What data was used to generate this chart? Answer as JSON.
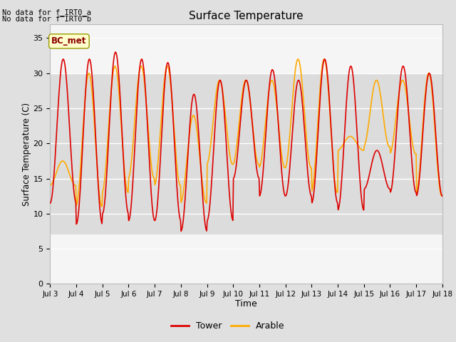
{
  "title": "Surface Temperature",
  "xlabel": "Time",
  "ylabel": "Surface Temperature (C)",
  "ylim": [
    0,
    37
  ],
  "yticks": [
    0,
    5,
    10,
    15,
    20,
    25,
    30,
    35
  ],
  "bg_color": "#e0e0e0",
  "plot_bg_color": "#f5f5f5",
  "grid_color": "#ffffff",
  "annotation_text": "No data for f_IRT0_a\nNo data for f̅IRT0̅b",
  "bc_met_label": "BC_met",
  "bc_met_bg": "#ffffcc",
  "bc_met_border": "#999900",
  "bc_met_text_color": "#8b0000",
  "legend_tower_color": "#dd0000",
  "legend_arable_color": "#ffaa00",
  "tower_color": "#dd0000",
  "arable_color": "#ffaa00",
  "tower_lw": 1.2,
  "arable_lw": 1.2,
  "x_start": 3,
  "x_end": 18,
  "xtick_positions": [
    3,
    4,
    5,
    6,
    7,
    8,
    9,
    10,
    11,
    12,
    13,
    14,
    15,
    16,
    17,
    18
  ],
  "xtick_labels": [
    "Jul 3",
    "Jul 4",
    "Jul 5",
    "Jul 6",
    "Jul 7",
    "Jul 8",
    "Jul 9",
    "Jul 10",
    "Jul 11",
    "Jul 12",
    "Jul 13",
    "Jul 14",
    "Jul 15",
    "Jul 16",
    "Jul 17",
    "Jul 18"
  ],
  "shaded_band_y1": 7,
  "shaded_band_y2": 30,
  "shaded_band_color": "#dcdcdc"
}
